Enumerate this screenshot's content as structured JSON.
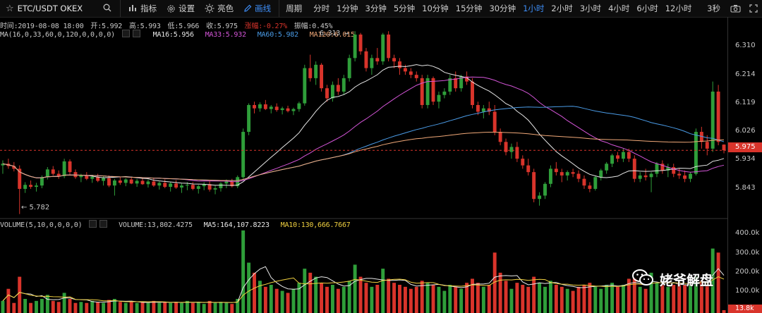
{
  "toolbar": {
    "symbol": "ETC/USDT OKEX",
    "buttons": [
      {
        "label": "指标",
        "icon": "indicator-icon"
      },
      {
        "label": "设置",
        "icon": "gear-icon"
      },
      {
        "label": "亮色",
        "icon": "sun-icon"
      },
      {
        "label": "画线",
        "icon": "pencil-icon"
      }
    ],
    "period_label": "周期",
    "periods": [
      "分时",
      "1分钟",
      "3分钟",
      "5分钟",
      "10分钟",
      "15分钟",
      "30分钟",
      "1小时",
      "2小时",
      "3小时",
      "4小时",
      "6小时",
      "12小时"
    ],
    "active_period": "1小时",
    "refresh": "3秒"
  },
  "ohlc": {
    "time": "时间:2019-08-08 18:00",
    "open": "开:5.992",
    "high": "高:5.993",
    "low": "低:5.966",
    "close": "收:5.975",
    "change": "涨幅:-0.27%",
    "amplitude": "振幅:0.45%"
  },
  "ma_legend": {
    "params": "MA(16,0,33,60,0,120,0,0,0,0)",
    "ma16": "MA16:5.956",
    "ma33": "MA33:5.932",
    "ma60": "MA60:5.982",
    "ma120": "MA120:6.015",
    "ma120_overlay": "6.313",
    "colors": {
      "ma16": "#e8e8e8",
      "ma33": "#d455d8",
      "ma60": "#4a9be6",
      "ma120": "#f0a878"
    }
  },
  "price_axis": {
    "ticks": [
      "6.310",
      "6.214",
      "6.119",
      "6.026",
      "5.934",
      "5.843"
    ],
    "current": "5.975",
    "low_marker": "← 5.782",
    "high_marker": "→"
  },
  "volume_legend": {
    "params": "VOLUME(5,10,0,0,0,0)",
    "volume": "VOLUME:13,802.4275",
    "ma5": "MA5:164,107.8223",
    "ma10": "MA10:130,666.7667"
  },
  "volume_axis": {
    "ticks": [
      "400.0k",
      "300.0k",
      "200.0k",
      "100.0k"
    ],
    "current": "13.8k"
  },
  "watermark": "姥爷解盘",
  "colors": {
    "up": "#2f9e3a",
    "down": "#d9342b",
    "accent": "#3e8ef7",
    "bg": "#000000"
  },
  "chart_data": {
    "type": "candlestick",
    "candles": [
      [
        5.93,
        5.945,
        5.905,
        5.935
      ],
      [
        5.935,
        5.95,
        5.92,
        5.928
      ],
      [
        5.928,
        5.94,
        5.912,
        5.92
      ],
      [
        5.92,
        5.93,
        5.785,
        5.86
      ],
      [
        5.86,
        5.88,
        5.848,
        5.872
      ],
      [
        5.872,
        5.885,
        5.86,
        5.866
      ],
      [
        5.866,
        5.878,
        5.852,
        5.87
      ],
      [
        5.87,
        5.9,
        5.862,
        5.895
      ],
      [
        5.895,
        5.925,
        5.888,
        5.918
      ],
      [
        5.918,
        5.928,
        5.9,
        5.905
      ],
      [
        5.905,
        5.915,
        5.89,
        5.898
      ],
      [
        5.898,
        5.95,
        5.892,
        5.942
      ],
      [
        5.942,
        5.948,
        5.902,
        5.91
      ],
      [
        5.91,
        5.918,
        5.89,
        5.895
      ],
      [
        5.895,
        5.905,
        5.88,
        5.9
      ],
      [
        5.9,
        5.91,
        5.886,
        5.89
      ],
      [
        5.89,
        5.902,
        5.878,
        5.896
      ],
      [
        5.896,
        5.905,
        5.88,
        5.884
      ],
      [
        5.884,
        5.898,
        5.87,
        5.892
      ],
      [
        5.892,
        5.9,
        5.865,
        5.87
      ],
      [
        5.87,
        5.89,
        5.84,
        5.885
      ],
      [
        5.885,
        5.895,
        5.872,
        5.878
      ],
      [
        5.878,
        5.892,
        5.868,
        5.888
      ],
      [
        5.888,
        5.896,
        5.874,
        5.876
      ],
      [
        5.876,
        5.89,
        5.866,
        5.884
      ],
      [
        5.884,
        5.894,
        5.872,
        5.874
      ],
      [
        5.874,
        5.888,
        5.864,
        5.882
      ],
      [
        5.882,
        5.892,
        5.866,
        5.87
      ],
      [
        5.87,
        5.882,
        5.858,
        5.878
      ],
      [
        5.878,
        5.888,
        5.862,
        5.866
      ],
      [
        5.866,
        5.88,
        5.852,
        5.876
      ],
      [
        5.876,
        5.886,
        5.86,
        5.864
      ],
      [
        5.864,
        5.876,
        5.848,
        5.87
      ],
      [
        5.87,
        5.88,
        5.856,
        5.872
      ],
      [
        5.872,
        5.88,
        5.856,
        5.86
      ],
      [
        5.86,
        5.872,
        5.846,
        5.868
      ],
      [
        5.868,
        5.88,
        5.856,
        5.874
      ],
      [
        5.874,
        5.884,
        5.852,
        5.858
      ],
      [
        5.858,
        5.87,
        5.844,
        5.862
      ],
      [
        5.862,
        5.88,
        5.852,
        5.876
      ],
      [
        5.876,
        5.888,
        5.862,
        5.882
      ],
      [
        5.882,
        5.89,
        5.864,
        5.868
      ],
      [
        5.868,
        5.9,
        5.862,
        5.895
      ],
      [
        5.895,
        6.04,
        5.89,
        6.03
      ],
      [
        6.03,
        6.115,
        6.02,
        6.11
      ],
      [
        6.11,
        6.12,
        6.085,
        6.1
      ],
      [
        6.1,
        6.118,
        6.09,
        6.112
      ],
      [
        6.112,
        6.125,
        6.095,
        6.098
      ],
      [
        6.098,
        6.11,
        6.085,
        6.105
      ],
      [
        6.105,
        6.115,
        6.09,
        6.095
      ],
      [
        6.095,
        6.105,
        6.082,
        6.1
      ],
      [
        6.1,
        6.108,
        6.088,
        6.092
      ],
      [
        6.092,
        6.102,
        6.08,
        6.098
      ],
      [
        6.098,
        6.12,
        6.09,
        6.115
      ],
      [
        6.115,
        6.23,
        6.108,
        6.22
      ],
      [
        6.22,
        6.26,
        6.18,
        6.19
      ],
      [
        6.19,
        6.24,
        6.17,
        6.23
      ],
      [
        6.23,
        6.235,
        6.15,
        6.16
      ],
      [
        6.16,
        6.17,
        6.12,
        6.13
      ],
      [
        6.13,
        6.18,
        6.12,
        6.17
      ],
      [
        6.17,
        6.19,
        6.14,
        6.15
      ],
      [
        6.15,
        6.2,
        6.14,
        6.19
      ],
      [
        6.19,
        6.26,
        6.18,
        6.25
      ],
      [
        6.25,
        6.33,
        6.24,
        6.32
      ],
      [
        6.32,
        6.325,
        6.26,
        6.27
      ],
      [
        6.27,
        6.28,
        6.21,
        6.22
      ],
      [
        6.22,
        6.26,
        6.2,
        6.25
      ],
      [
        6.25,
        6.28,
        6.23,
        6.24
      ],
      [
        6.24,
        6.325,
        6.23,
        6.32
      ],
      [
        6.32,
        6.33,
        6.24,
        6.25
      ],
      [
        6.25,
        6.26,
        6.22,
        6.24
      ],
      [
        6.24,
        6.25,
        6.2,
        6.22
      ],
      [
        6.22,
        6.23,
        6.2,
        6.21
      ],
      [
        6.21,
        6.22,
        6.19,
        6.2
      ],
      [
        6.2,
        6.21,
        6.18,
        6.19
      ],
      [
        6.19,
        6.2,
        6.1,
        6.11
      ],
      [
        6.11,
        6.2,
        6.1,
        6.19
      ],
      [
        6.19,
        6.195,
        6.11,
        6.12
      ],
      [
        6.12,
        6.15,
        6.1,
        6.14
      ],
      [
        6.14,
        6.16,
        6.13,
        6.15
      ],
      [
        6.15,
        6.2,
        6.14,
        6.19
      ],
      [
        6.19,
        6.21,
        6.15,
        6.16
      ],
      [
        6.16,
        6.2,
        6.15,
        6.195
      ],
      [
        6.195,
        6.21,
        6.17,
        6.18
      ],
      [
        6.18,
        6.19,
        6.1,
        6.11
      ],
      [
        6.11,
        6.12,
        6.08,
        6.09
      ],
      [
        6.09,
        6.11,
        6.07,
        6.1
      ],
      [
        6.1,
        6.12,
        6.08,
        6.09
      ],
      [
        6.09,
        6.11,
        6.02,
        6.03
      ],
      [
        6.03,
        6.04,
        5.99,
        6.0
      ],
      [
        6.0,
        6.01,
        5.96,
        5.97
      ],
      [
        5.97,
        5.995,
        5.95,
        5.985
      ],
      [
        5.985,
        6.0,
        5.94,
        5.95
      ],
      [
        5.95,
        5.96,
        5.92,
        5.93
      ],
      [
        5.93,
        5.95,
        5.9,
        5.91
      ],
      [
        5.91,
        5.92,
        5.82,
        5.83
      ],
      [
        5.83,
        5.85,
        5.81,
        5.84
      ],
      [
        5.84,
        5.88,
        5.83,
        5.875
      ],
      [
        5.875,
        5.93,
        5.865,
        5.92
      ],
      [
        5.92,
        5.94,
        5.9,
        5.91
      ],
      [
        5.91,
        5.92,
        5.88,
        5.9
      ],
      [
        5.9,
        5.915,
        5.885,
        5.91
      ],
      [
        5.91,
        5.92,
        5.895,
        5.905
      ],
      [
        5.905,
        5.915,
        5.88,
        5.89
      ],
      [
        5.89,
        5.9,
        5.86,
        5.87
      ],
      [
        5.87,
        5.88,
        5.85,
        5.86
      ],
      [
        5.86,
        5.9,
        5.855,
        5.895
      ],
      [
        5.895,
        5.92,
        5.885,
        5.915
      ],
      [
        5.915,
        5.94,
        5.905,
        5.935
      ],
      [
        5.935,
        5.965,
        5.925,
        5.96
      ],
      [
        5.96,
        5.97,
        5.94,
        5.95
      ],
      [
        5.95,
        5.98,
        5.94,
        5.97
      ],
      [
        5.97,
        5.98,
        5.94,
        5.95
      ],
      [
        5.95,
        5.96,
        5.88,
        5.89
      ],
      [
        5.89,
        5.91,
        5.88,
        5.9
      ],
      [
        5.9,
        5.92,
        5.885,
        5.895
      ],
      [
        5.895,
        5.91,
        5.85,
        5.905
      ],
      [
        5.905,
        5.94,
        5.895,
        5.935
      ],
      [
        5.935,
        5.945,
        5.905,
        5.915
      ],
      [
        5.915,
        5.935,
        5.895,
        5.925
      ],
      [
        5.925,
        5.935,
        5.895,
        5.905
      ],
      [
        5.905,
        5.92,
        5.89,
        5.9
      ],
      [
        5.9,
        5.915,
        5.88,
        5.89
      ],
      [
        5.89,
        5.91,
        5.88,
        5.905
      ],
      [
        5.905,
        6.04,
        5.9,
        6.03
      ],
      [
        6.03,
        6.045,
        5.98,
        6.0
      ],
      [
        6.0,
        6.02,
        5.96,
        5.98
      ],
      [
        5.98,
        6.18,
        5.97,
        6.15
      ],
      [
        6.15,
        6.17,
        5.99,
        6.0
      ],
      [
        5.992,
        5.993,
        5.966,
        5.975
      ]
    ],
    "volume": [
      60,
      120,
      50,
      180,
      70,
      50,
      60,
      70,
      90,
      60,
      55,
      100,
      70,
      50,
      55,
      50,
      60,
      55,
      50,
      65,
      70,
      55,
      50,
      55,
      50,
      55,
      50,
      60,
      50,
      55,
      50,
      55,
      50,
      60,
      50,
      55,
      45,
      60,
      50,
      55,
      50,
      45,
      70,
      410,
      250,
      200,
      160,
      130,
      140,
      120,
      110,
      100,
      120,
      150,
      220,
      200,
      180,
      150,
      130,
      140,
      120,
      130,
      160,
      240,
      180,
      150,
      130,
      140,
      220,
      170,
      150,
      140,
      130,
      120,
      130,
      160,
      150,
      140,
      130,
      110,
      140,
      130,
      120,
      150,
      170,
      150,
      130,
      140,
      300,
      200,
      160,
      120,
      150,
      140,
      130,
      180,
      150,
      130,
      160,
      140,
      130,
      120,
      110,
      130,
      140,
      150,
      130,
      120,
      140,
      150,
      130,
      140,
      170,
      170,
      130,
      120,
      200,
      150,
      140,
      130,
      140,
      150,
      140,
      140,
      180,
      160,
      140,
      320,
      300,
      14
    ],
    "ylim": [
      5.78,
      6.36
    ],
    "volume_ylim": [
      0,
      420
    ]
  }
}
